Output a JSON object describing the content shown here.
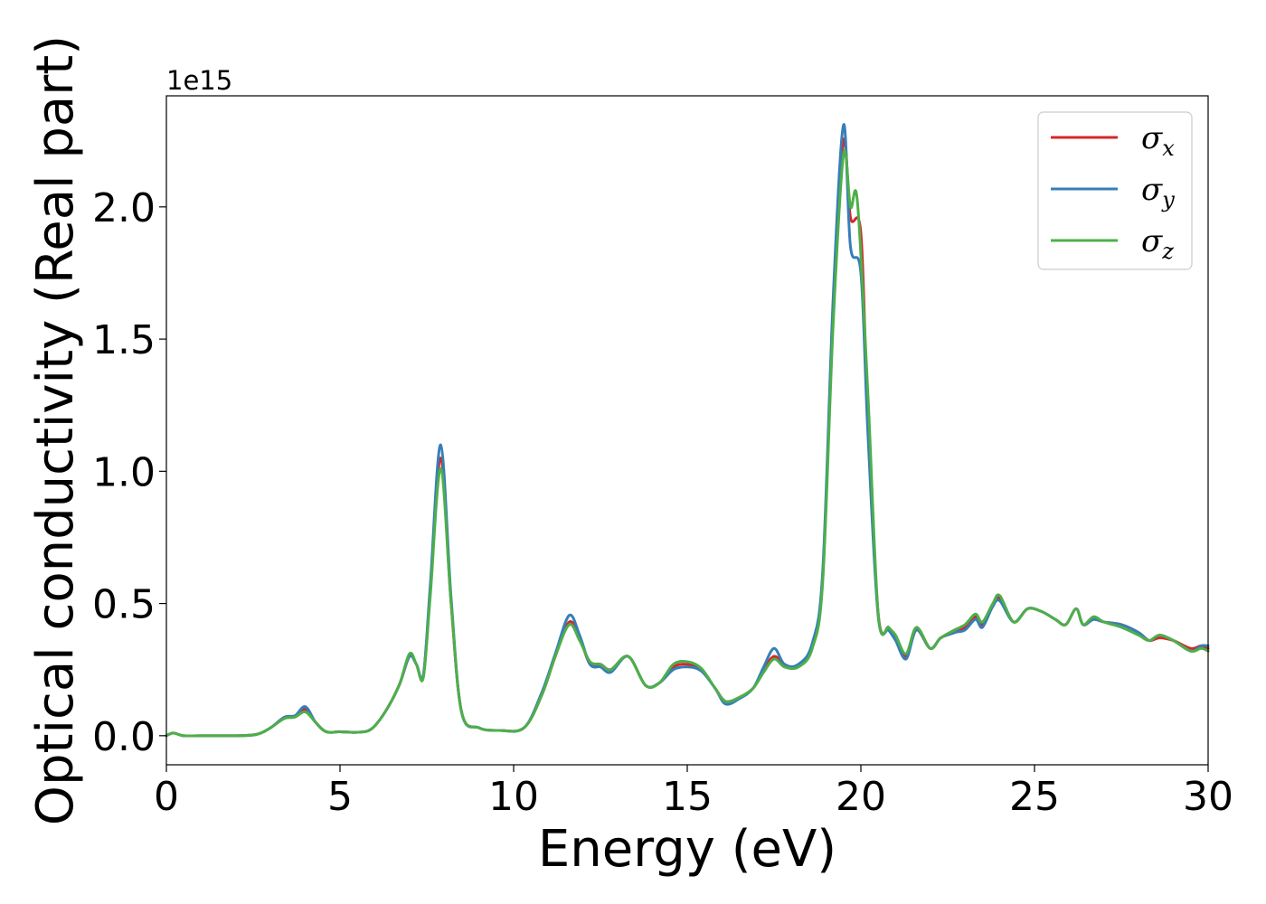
{
  "chart_data": {
    "type": "line",
    "xlabel": "Energy (eV)",
    "ylabel": "Optical conductivity (Real part)",
    "y_offset_label": "1e15",
    "xlim": [
      0,
      30
    ],
    "ylim": [
      -0.11,
      2.42
    ],
    "x_ticks": [
      0,
      5,
      10,
      15,
      20,
      25,
      30
    ],
    "x_tick_labels": [
      "0",
      "5",
      "10",
      "15",
      "20",
      "25",
      "30"
    ],
    "y_ticks": [
      0.0,
      0.5,
      1.0,
      1.5,
      2.0
    ],
    "y_tick_labels": [
      "0.0",
      "0.5",
      "1.0",
      "1.5",
      "2.0"
    ],
    "grid": false,
    "legend_position": "top-right",
    "series": [
      {
        "name": "σ",
        "subscript": "x",
        "color": "#d62728",
        "points": [
          [
            0,
            0
          ],
          [
            0.2,
            0.01
          ],
          [
            0.5,
            0
          ],
          [
            1,
            0
          ],
          [
            2,
            0
          ],
          [
            2.6,
            0.005
          ],
          [
            3,
            0.03
          ],
          [
            3.4,
            0.07
          ],
          [
            3.7,
            0.075
          ],
          [
            4,
            0.1
          ],
          [
            4.3,
            0.05
          ],
          [
            4.6,
            0.015
          ],
          [
            5,
            0.015
          ],
          [
            5.5,
            0.013
          ],
          [
            5.9,
            0.025
          ],
          [
            6.3,
            0.09
          ],
          [
            6.7,
            0.19
          ],
          [
            7,
            0.3
          ],
          [
            7.2,
            0.27
          ],
          [
            7.4,
            0.225
          ],
          [
            7.6,
            0.55
          ],
          [
            7.9,
            1.05
          ],
          [
            8.2,
            0.5
          ],
          [
            8.5,
            0.09
          ],
          [
            9,
            0.03
          ],
          [
            9.6,
            0.02
          ],
          [
            10.3,
            0.03
          ],
          [
            10.8,
            0.15
          ],
          [
            11.2,
            0.3
          ],
          [
            11.6,
            0.43
          ],
          [
            11.9,
            0.37
          ],
          [
            12.2,
            0.27
          ],
          [
            12.5,
            0.27
          ],
          [
            12.8,
            0.25
          ],
          [
            13.3,
            0.3
          ],
          [
            13.8,
            0.19
          ],
          [
            14.2,
            0.2
          ],
          [
            14.6,
            0.26
          ],
          [
            15,
            0.27
          ],
          [
            15.4,
            0.25
          ],
          [
            15.8,
            0.18
          ],
          [
            16.1,
            0.13
          ],
          [
            16.5,
            0.145
          ],
          [
            16.9,
            0.18
          ],
          [
            17.2,
            0.25
          ],
          [
            17.5,
            0.3
          ],
          [
            17.8,
            0.27
          ],
          [
            18.2,
            0.26
          ],
          [
            18.6,
            0.34
          ],
          [
            18.9,
            0.6
          ],
          [
            19.2,
            1.6
          ],
          [
            19.5,
            2.25
          ],
          [
            19.7,
            1.96
          ],
          [
            20,
            1.9
          ],
          [
            20.2,
            1.2
          ],
          [
            20.5,
            0.46
          ],
          [
            20.8,
            0.4
          ],
          [
            21,
            0.37
          ],
          [
            21.3,
            0.3
          ],
          [
            21.6,
            0.4
          ],
          [
            22,
            0.33
          ],
          [
            22.3,
            0.37
          ],
          [
            22.7,
            0.39
          ],
          [
            23,
            0.41
          ],
          [
            23.3,
            0.45
          ],
          [
            23.5,
            0.42
          ],
          [
            23.8,
            0.49
          ],
          [
            24,
            0.52
          ],
          [
            24.4,
            0.43
          ],
          [
            24.8,
            0.48
          ],
          [
            25.2,
            0.47
          ],
          [
            25.6,
            0.44
          ],
          [
            25.9,
            0.42
          ],
          [
            26.2,
            0.48
          ],
          [
            26.4,
            0.42
          ],
          [
            26.7,
            0.44
          ],
          [
            27,
            0.43
          ],
          [
            27.5,
            0.42
          ],
          [
            28,
            0.39
          ],
          [
            28.3,
            0.36
          ],
          [
            28.6,
            0.37
          ],
          [
            29,
            0.36
          ],
          [
            29.5,
            0.33
          ],
          [
            29.8,
            0.34
          ],
          [
            30,
            0.33
          ]
        ]
      },
      {
        "name": "σ",
        "subscript": "y",
        "color": "#377eb8",
        "points": [
          [
            0,
            0
          ],
          [
            0.2,
            0.01
          ],
          [
            0.5,
            0
          ],
          [
            1,
            0
          ],
          [
            2,
            0
          ],
          [
            2.6,
            0.005
          ],
          [
            3,
            0.03
          ],
          [
            3.4,
            0.07
          ],
          [
            3.7,
            0.075
          ],
          [
            4,
            0.11
          ],
          [
            4.3,
            0.05
          ],
          [
            4.6,
            0.015
          ],
          [
            5,
            0.015
          ],
          [
            5.5,
            0.013
          ],
          [
            5.9,
            0.025
          ],
          [
            6.3,
            0.09
          ],
          [
            6.7,
            0.19
          ],
          [
            7,
            0.3
          ],
          [
            7.2,
            0.27
          ],
          [
            7.4,
            0.23
          ],
          [
            7.6,
            0.57
          ],
          [
            7.9,
            1.1
          ],
          [
            8.2,
            0.52
          ],
          [
            8.5,
            0.09
          ],
          [
            9,
            0.03
          ],
          [
            9.6,
            0.02
          ],
          [
            10.3,
            0.03
          ],
          [
            10.8,
            0.16
          ],
          [
            11.2,
            0.31
          ],
          [
            11.6,
            0.455
          ],
          [
            11.9,
            0.38
          ],
          [
            12.2,
            0.27
          ],
          [
            12.5,
            0.26
          ],
          [
            12.8,
            0.24
          ],
          [
            13.3,
            0.3
          ],
          [
            13.8,
            0.19
          ],
          [
            14.2,
            0.2
          ],
          [
            14.6,
            0.25
          ],
          [
            15,
            0.26
          ],
          [
            15.4,
            0.245
          ],
          [
            15.8,
            0.18
          ],
          [
            16.1,
            0.12
          ],
          [
            16.5,
            0.14
          ],
          [
            16.9,
            0.18
          ],
          [
            17.2,
            0.26
          ],
          [
            17.5,
            0.33
          ],
          [
            17.8,
            0.27
          ],
          [
            18.2,
            0.27
          ],
          [
            18.6,
            0.35
          ],
          [
            18.9,
            0.62
          ],
          [
            19.2,
            1.65
          ],
          [
            19.5,
            2.31
          ],
          [
            19.7,
            1.85
          ],
          [
            20,
            1.75
          ],
          [
            20.2,
            1.15
          ],
          [
            20.5,
            0.45
          ],
          [
            20.8,
            0.4
          ],
          [
            21,
            0.36
          ],
          [
            21.3,
            0.29
          ],
          [
            21.6,
            0.4
          ],
          [
            22,
            0.33
          ],
          [
            22.3,
            0.37
          ],
          [
            22.7,
            0.39
          ],
          [
            23,
            0.4
          ],
          [
            23.3,
            0.44
          ],
          [
            23.5,
            0.41
          ],
          [
            23.8,
            0.49
          ],
          [
            24,
            0.51
          ],
          [
            24.4,
            0.43
          ],
          [
            24.8,
            0.48
          ],
          [
            25.2,
            0.47
          ],
          [
            25.6,
            0.44
          ],
          [
            25.9,
            0.42
          ],
          [
            26.2,
            0.48
          ],
          [
            26.4,
            0.42
          ],
          [
            26.7,
            0.44
          ],
          [
            27,
            0.43
          ],
          [
            27.5,
            0.42
          ],
          [
            28,
            0.39
          ],
          [
            28.3,
            0.36
          ],
          [
            28.6,
            0.38
          ],
          [
            29,
            0.36
          ],
          [
            29.5,
            0.32
          ],
          [
            29.8,
            0.34
          ],
          [
            30,
            0.34
          ]
        ]
      },
      {
        "name": "σ",
        "subscript": "z",
        "color": "#4daf4a",
        "points": [
          [
            0,
            0
          ],
          [
            0.2,
            0.01
          ],
          [
            0.5,
            0
          ],
          [
            1,
            0
          ],
          [
            2,
            0
          ],
          [
            2.6,
            0.005
          ],
          [
            3,
            0.03
          ],
          [
            3.4,
            0.065
          ],
          [
            3.7,
            0.07
          ],
          [
            4,
            0.09
          ],
          [
            4.3,
            0.05
          ],
          [
            4.6,
            0.015
          ],
          [
            5,
            0.015
          ],
          [
            5.5,
            0.013
          ],
          [
            5.9,
            0.025
          ],
          [
            6.3,
            0.09
          ],
          [
            6.7,
            0.19
          ],
          [
            7,
            0.31
          ],
          [
            7.2,
            0.27
          ],
          [
            7.4,
            0.22
          ],
          [
            7.6,
            0.53
          ],
          [
            7.9,
            1.01
          ],
          [
            8.2,
            0.5
          ],
          [
            8.5,
            0.09
          ],
          [
            9,
            0.03
          ],
          [
            9.6,
            0.02
          ],
          [
            10.3,
            0.03
          ],
          [
            10.8,
            0.15
          ],
          [
            11.2,
            0.3
          ],
          [
            11.6,
            0.42
          ],
          [
            11.9,
            0.36
          ],
          [
            12.2,
            0.28
          ],
          [
            12.5,
            0.27
          ],
          [
            12.8,
            0.25
          ],
          [
            13.3,
            0.3
          ],
          [
            13.8,
            0.19
          ],
          [
            14.2,
            0.2
          ],
          [
            14.6,
            0.27
          ],
          [
            15,
            0.28
          ],
          [
            15.4,
            0.255
          ],
          [
            15.8,
            0.18
          ],
          [
            16.1,
            0.13
          ],
          [
            16.5,
            0.145
          ],
          [
            16.9,
            0.18
          ],
          [
            17.2,
            0.24
          ],
          [
            17.5,
            0.29
          ],
          [
            17.8,
            0.26
          ],
          [
            18.2,
            0.26
          ],
          [
            18.6,
            0.33
          ],
          [
            18.9,
            0.58
          ],
          [
            19.2,
            1.55
          ],
          [
            19.5,
            2.2
          ],
          [
            19.7,
            2.0
          ],
          [
            19.9,
            2.02
          ],
          [
            20.2,
            1.3
          ],
          [
            20.5,
            0.46
          ],
          [
            20.8,
            0.41
          ],
          [
            21,
            0.38
          ],
          [
            21.3,
            0.31
          ],
          [
            21.6,
            0.41
          ],
          [
            22,
            0.33
          ],
          [
            22.3,
            0.37
          ],
          [
            22.7,
            0.4
          ],
          [
            23,
            0.42
          ],
          [
            23.3,
            0.46
          ],
          [
            23.5,
            0.43
          ],
          [
            23.8,
            0.5
          ],
          [
            24,
            0.53
          ],
          [
            24.4,
            0.43
          ],
          [
            24.8,
            0.48
          ],
          [
            25.2,
            0.47
          ],
          [
            25.6,
            0.44
          ],
          [
            25.9,
            0.42
          ],
          [
            26.2,
            0.48
          ],
          [
            26.4,
            0.42
          ],
          [
            26.7,
            0.45
          ],
          [
            27,
            0.43
          ],
          [
            27.5,
            0.41
          ],
          [
            28,
            0.38
          ],
          [
            28.3,
            0.36
          ],
          [
            28.6,
            0.38
          ],
          [
            29,
            0.36
          ],
          [
            29.5,
            0.32
          ],
          [
            29.8,
            0.33
          ],
          [
            30,
            0.32
          ]
        ]
      }
    ]
  }
}
